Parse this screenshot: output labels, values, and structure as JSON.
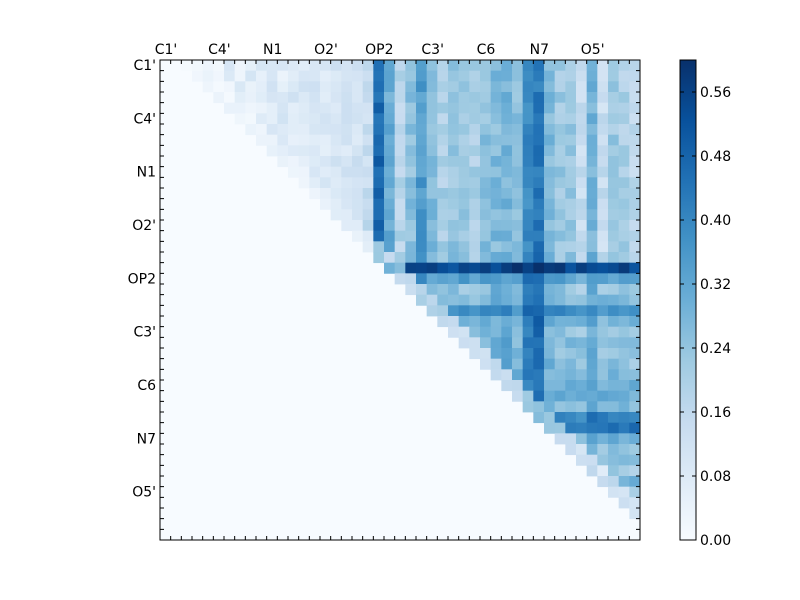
{
  "chart_data": {
    "type": "heatmap",
    "title": "",
    "xlabel": "",
    "ylabel": "",
    "x_tick_labels": [
      "C1'",
      "C4'",
      "N1",
      "O2'",
      "OP2",
      "C3'",
      "C6",
      "N7",
      "O5'"
    ],
    "y_tick_labels": [
      "C1'",
      "C4'",
      "N1",
      "O2'",
      "OP2",
      "C3'",
      "C6",
      "N7",
      "O5'"
    ],
    "tick_every_n_atoms": 5,
    "n_atoms": 45,
    "colormap": "Blues",
    "colormap_stops": [
      "#f7fbff",
      "#deebf7",
      "#c6dbef",
      "#9ecae1",
      "#6baed6",
      "#4292c6",
      "#2171b5",
      "#08519c",
      "#08306b"
    ],
    "vmin": 0.0,
    "vmax": 0.6,
    "colorbar_ticks": [
      "0.00",
      "0.08",
      "0.16",
      "0.24",
      "0.32",
      "0.40",
      "0.48",
      "0.56"
    ],
    "colorbar_position": "right",
    "upper_triangle_only": true,
    "column_profile": [
      0.05,
      0.05,
      0.05,
      0.05,
      0.05,
      0.05,
      0.06,
      0.06,
      0.07,
      0.07,
      0.08,
      0.08,
      0.09,
      0.09,
      0.1,
      0.1,
      0.1,
      0.1,
      0.12,
      0.15,
      0.55,
      0.35,
      0.2,
      0.28,
      0.4,
      0.3,
      0.22,
      0.26,
      0.25,
      0.22,
      0.28,
      0.3,
      0.32,
      0.28,
      0.45,
      0.5,
      0.3,
      0.25,
      0.25,
      0.15,
      0.32,
      0.15,
      0.25,
      0.22,
      0.18
    ],
    "row_profile": [
      0.05,
      0.05,
      0.05,
      0.05,
      0.05,
      0.05,
      0.06,
      0.06,
      0.07,
      0.07,
      0.08,
      0.08,
      0.09,
      0.09,
      0.1,
      0.1,
      0.1,
      0.1,
      0.15,
      0.6,
      0.35,
      0.2,
      0.28,
      0.4,
      0.3,
      0.22,
      0.26,
      0.25,
      0.22,
      0.28,
      0.3,
      0.32,
      0.28,
      0.45,
      0.5,
      0.3,
      0.25,
      0.25,
      0.15,
      0.32,
      0.15,
      0.25,
      0.22,
      0.18,
      0.4
    ],
    "peak_cells": [
      {
        "row": 19,
        "col": 33,
        "value": 0.6
      },
      {
        "row": 19,
        "col": 34,
        "value": 0.56
      },
      {
        "row": 43,
        "col": 44,
        "value": 0.42
      },
      {
        "row": 42,
        "col": 42,
        "value": 0.3
      }
    ]
  }
}
